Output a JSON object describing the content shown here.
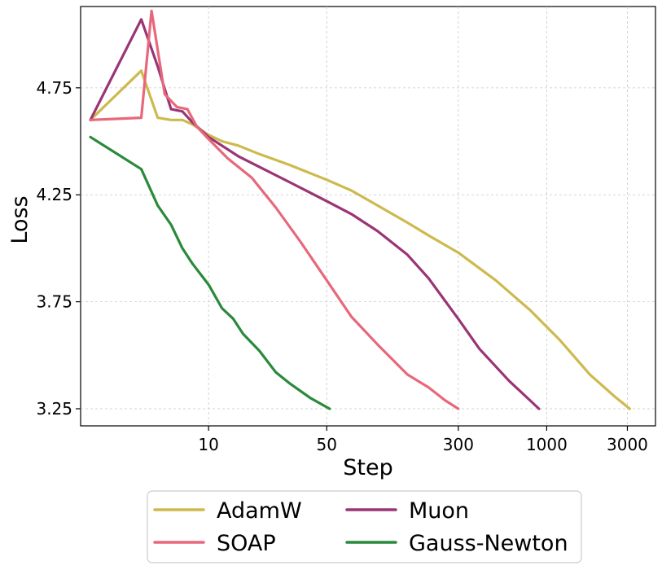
{
  "chart_data": {
    "type": "line",
    "title": "",
    "xlabel": "Step",
    "ylabel": "Loss",
    "xscale": "log",
    "xlim": [
      1.75,
      4400
    ],
    "ylim": [
      3.17,
      5.13
    ],
    "xticks": [
      {
        "value": 10,
        "label": "10"
      },
      {
        "value": 50,
        "label": "50"
      },
      {
        "value": 300,
        "label": "300"
      },
      {
        "value": 1000,
        "label": "1000"
      },
      {
        "value": 3000,
        "label": "3000"
      }
    ],
    "yticks": [
      {
        "value": 3.25,
        "label": "3.25"
      },
      {
        "value": 3.75,
        "label": "3.75"
      },
      {
        "value": 4.25,
        "label": "4.25"
      },
      {
        "value": 4.75,
        "label": "4.75"
      }
    ],
    "grid": true,
    "legend": {
      "position": "below",
      "columns": 2
    },
    "series": [
      {
        "name": "AdamW",
        "color": "#CDBA4E",
        "x": [
          2,
          4,
          5,
          6,
          7,
          8,
          10,
          12,
          15,
          20,
          30,
          50,
          70,
          100,
          150,
          200,
          300,
          500,
          800,
          1200,
          1800,
          2500,
          3100
        ],
        "y": [
          4.6,
          4.83,
          4.61,
          4.6,
          4.6,
          4.58,
          4.53,
          4.5,
          4.48,
          4.44,
          4.39,
          4.32,
          4.27,
          4.2,
          4.12,
          4.06,
          3.98,
          3.85,
          3.71,
          3.57,
          3.41,
          3.31,
          3.25
        ]
      },
      {
        "name": "Muon",
        "color": "#9A3575",
        "x": [
          2,
          4,
          5,
          6,
          7,
          8,
          10,
          15,
          20,
          30,
          50,
          70,
          100,
          150,
          200,
          300,
          400,
          600,
          900
        ],
        "y": [
          4.6,
          5.07,
          4.85,
          4.65,
          4.64,
          4.59,
          4.52,
          4.43,
          4.38,
          4.31,
          4.22,
          4.16,
          4.08,
          3.97,
          3.86,
          3.67,
          3.53,
          3.38,
          3.25
        ]
      },
      {
        "name": "SOAP",
        "color": "#E7687B",
        "x": [
          2,
          4,
          4.6,
          5.5,
          6.5,
          7.5,
          8.5,
          10,
          13,
          18,
          25,
          35,
          50,
          70,
          100,
          150,
          200,
          250,
          300
        ],
        "y": [
          4.6,
          4.61,
          5.11,
          4.72,
          4.66,
          4.65,
          4.57,
          4.51,
          4.42,
          4.33,
          4.19,
          4.03,
          3.85,
          3.68,
          3.55,
          3.41,
          3.35,
          3.29,
          3.25
        ]
      },
      {
        "name": "Gauss-Newton",
        "color": "#2A8A3B",
        "x": [
          2,
          4,
          5,
          6,
          7,
          8,
          10,
          12,
          14,
          16,
          20,
          25,
          30,
          40,
          52
        ],
        "y": [
          4.52,
          4.37,
          4.2,
          4.11,
          4.0,
          3.93,
          3.83,
          3.72,
          3.67,
          3.6,
          3.52,
          3.42,
          3.37,
          3.3,
          3.25
        ]
      }
    ]
  }
}
